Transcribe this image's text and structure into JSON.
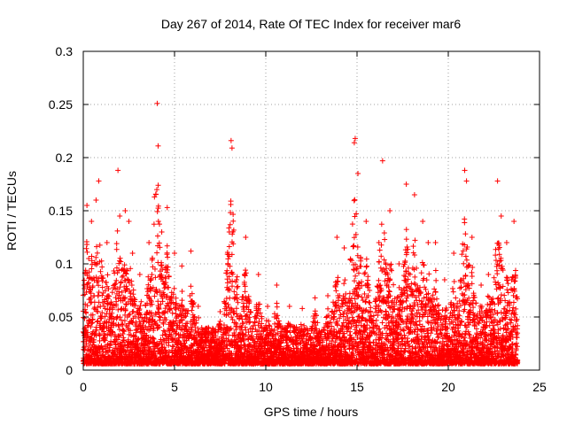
{
  "chart_data": {
    "type": "scatter",
    "title": "Day 267 of 2014, Rate Of TEC Index for receiver mar6",
    "xlabel": "GPS time / hours",
    "ylabel": "ROTI / TECUs",
    "xlim": [
      0,
      25
    ],
    "ylim": [
      0,
      0.3
    ],
    "xticks": [
      0,
      5,
      10,
      15,
      20,
      25
    ],
    "xtick_labels": [
      "0",
      "5",
      "10",
      "15",
      "20",
      "25"
    ],
    "yticks": [
      0,
      0.05,
      0.1,
      0.15,
      0.2,
      0.25,
      0.3
    ],
    "ytick_labels": [
      "0",
      "0.05",
      "0.1",
      "0.15",
      "0.2",
      "0.25",
      "0.3"
    ],
    "grid": true,
    "marker": "+",
    "color": "#ff0000",
    "series": [
      {
        "name": "ROTI",
        "x": [
          0.05,
          0.2,
          0.3,
          0.45,
          0.7,
          0.85,
          1.3,
          1.9,
          2.0,
          2.3,
          2.5,
          2.7,
          3.1,
          3.6,
          3.9,
          4.05,
          4.1,
          4.3,
          4.6,
          5.0,
          5.4,
          5.9,
          6.3,
          7.5,
          8.0,
          8.1,
          8.15,
          8.4,
          8.9,
          9.6,
          10.1,
          10.6,
          11.3,
          12.0,
          12.7,
          13.4,
          13.9,
          14.3,
          14.85,
          14.9,
          15.05,
          15.5,
          16.2,
          16.4,
          16.8,
          17.3,
          17.7,
          18.15,
          18.6,
          18.9,
          19.3,
          19.8,
          20.3,
          20.9,
          21.0,
          21.3,
          21.8,
          22.2,
          22.7,
          22.9,
          23.2,
          23.6
        ],
        "y": [
          0.08,
          0.155,
          0.105,
          0.14,
          0.16,
          0.178,
          0.12,
          0.188,
          0.145,
          0.15,
          0.14,
          0.11,
          0.09,
          0.12,
          0.163,
          0.251,
          0.211,
          0.13,
          0.153,
          0.11,
          0.098,
          0.112,
          0.06,
          0.055,
          0.13,
          0.216,
          0.209,
          0.085,
          0.125,
          0.09,
          0.06,
          0.08,
          0.06,
          0.058,
          0.068,
          0.07,
          0.125,
          0.115,
          0.214,
          0.218,
          0.185,
          0.14,
          0.12,
          0.197,
          0.15,
          0.1,
          0.175,
          0.165,
          0.14,
          0.12,
          0.12,
          0.085,
          0.11,
          0.188,
          0.178,
          0.125,
          0.08,
          0.09,
          0.178,
          0.145,
          0.12,
          0.14
        ]
      }
    ]
  }
}
